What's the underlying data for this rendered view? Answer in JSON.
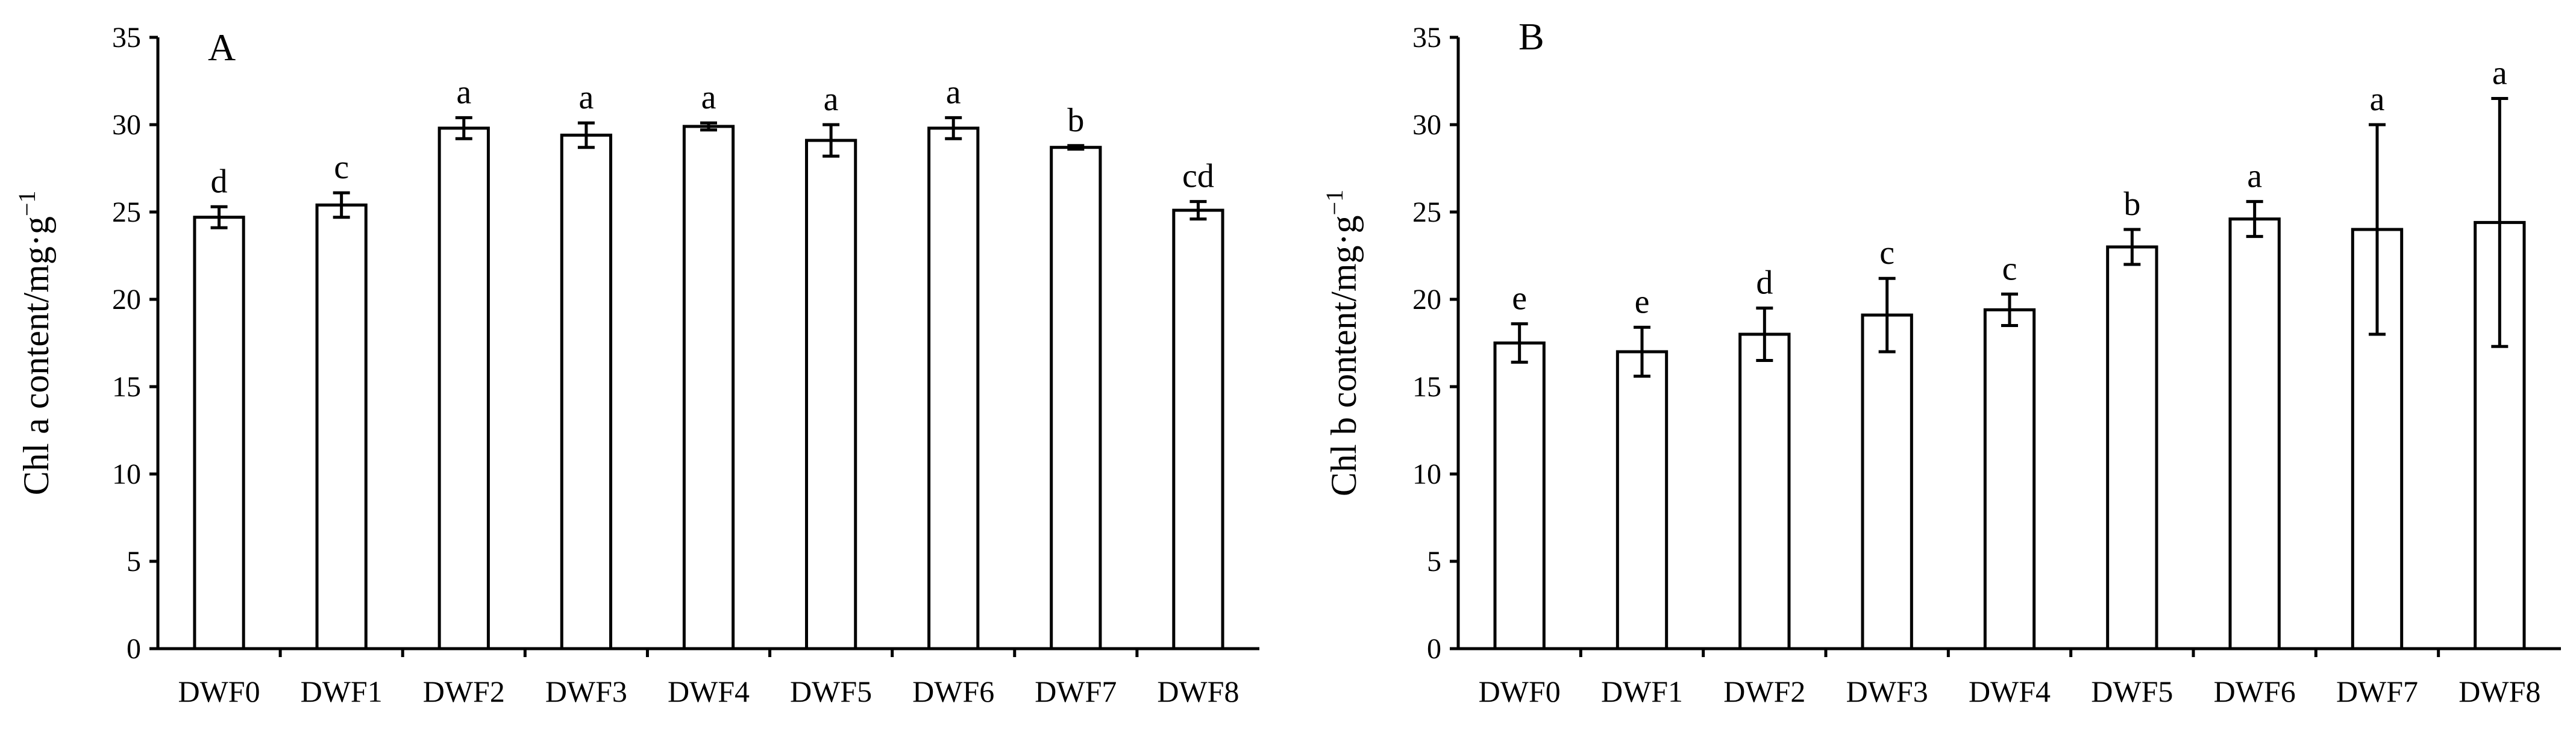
{
  "chart_data": [
    {
      "type": "bar",
      "panel_label": "A",
      "ylabel": "Chl a content/mg·g",
      "ylabel_sup": "−1",
      "xlabel": "",
      "ylim": [
        0,
        35
      ],
      "yticks": [
        0,
        5,
        10,
        15,
        20,
        25,
        30,
        35
      ],
      "categories": [
        "DWF0",
        "DWF1",
        "DWF2",
        "DWF3",
        "DWF4",
        "DWF5",
        "DWF6",
        "DWF7",
        "DWF8"
      ],
      "values": [
        24.7,
        25.4,
        29.8,
        29.4,
        29.9,
        29.1,
        29.8,
        28.7,
        25.1
      ],
      "errors": [
        0.6,
        0.7,
        0.6,
        0.7,
        0.2,
        0.9,
        0.6,
        0.1,
        0.5
      ],
      "labels": [
        "d",
        "c",
        "a",
        "a",
        "a",
        "a",
        "a",
        "b",
        "cd"
      ],
      "grid": false,
      "legend": "none"
    },
    {
      "type": "bar",
      "panel_label": "B",
      "ylabel": "Chl b content/mg·g",
      "ylabel_sup": "−1",
      "xlabel": "",
      "ylim": [
        0,
        35
      ],
      "yticks": [
        0,
        5,
        10,
        15,
        20,
        25,
        30,
        35
      ],
      "categories": [
        "DWF0",
        "DWF1",
        "DWF2",
        "DWF3",
        "DWF4",
        "DWF5",
        "DWF6",
        "DWF7",
        "DWF8"
      ],
      "values": [
        17.5,
        17.0,
        18.0,
        19.1,
        19.4,
        23.0,
        24.6,
        24.0,
        24.4
      ],
      "errors": [
        1.1,
        1.4,
        1.5,
        2.1,
        0.9,
        1.0,
        1.0,
        6.0,
        7.1
      ],
      "labels": [
        "e",
        "e",
        "d",
        "c",
        "c",
        "b",
        "a",
        "a",
        "a"
      ],
      "grid": false,
      "legend": "none"
    }
  ]
}
